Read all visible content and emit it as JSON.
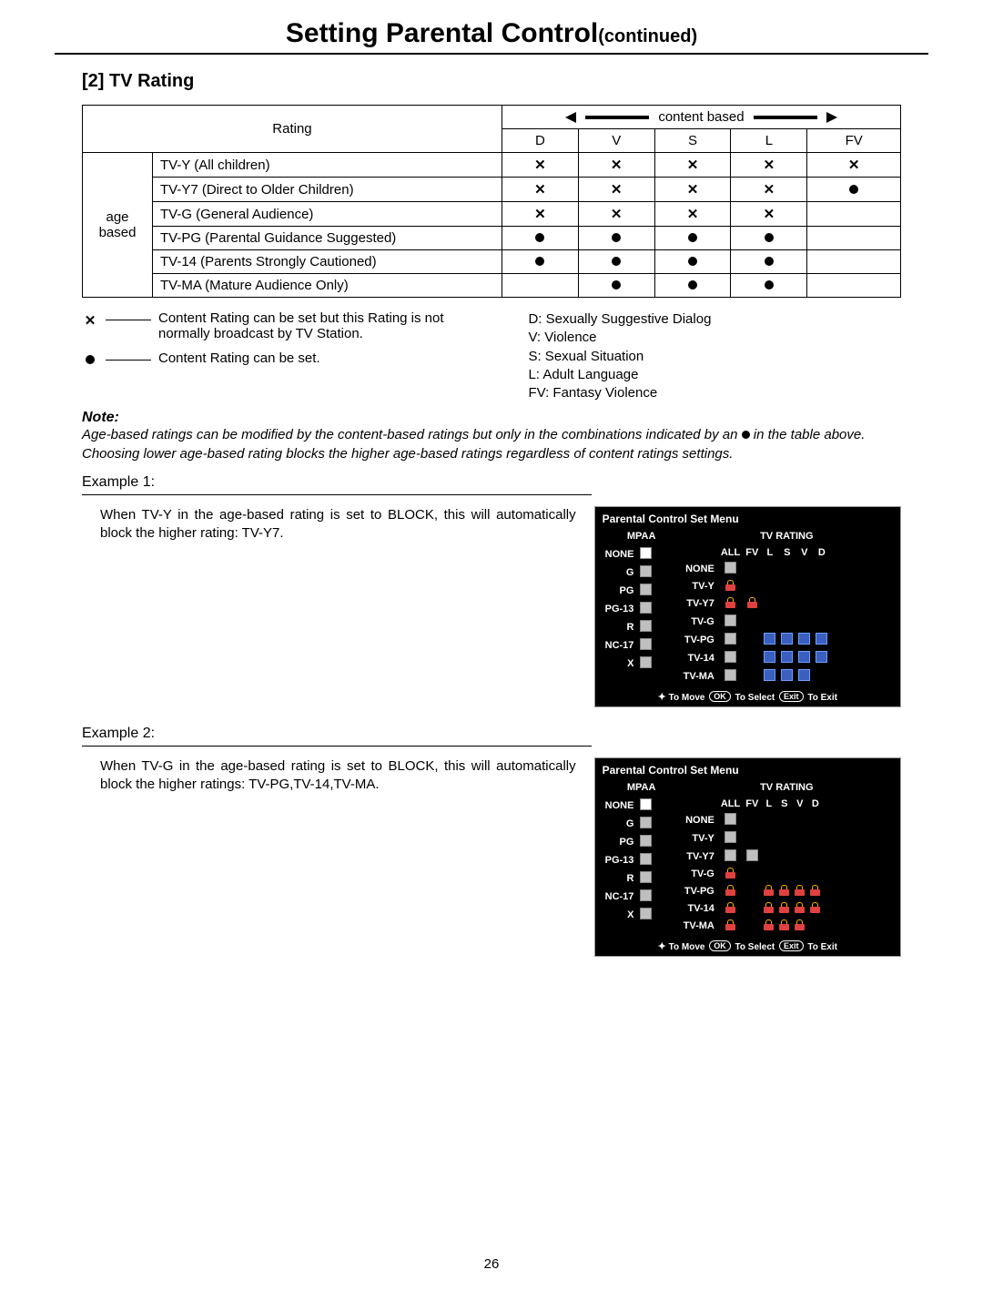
{
  "page_number": "26",
  "title_main": "Setting Parental Control",
  "title_cont": "(continued)",
  "section_heading": "[2] TV Rating",
  "rating_table": {
    "corner_label": "Rating",
    "content_based_label": "content based",
    "age_based_label": "age based",
    "content_cols": [
      "D",
      "V",
      "S",
      "L",
      "FV"
    ],
    "rows": [
      {
        "label": "TV-Y (All children)",
        "cells": [
          "x",
          "x",
          "x",
          "x",
          "x"
        ]
      },
      {
        "label": "TV-Y7 (Direct to Older Children)",
        "cells": [
          "x",
          "x",
          "x",
          "x",
          "dot"
        ]
      },
      {
        "label": "TV-G (General Audience)",
        "cells": [
          "x",
          "x",
          "x",
          "x",
          ""
        ]
      },
      {
        "label": "TV-PG (Parental Guidance Suggested)",
        "cells": [
          "dot",
          "dot",
          "dot",
          "dot",
          ""
        ]
      },
      {
        "label": "TV-14 (Parents Strongly Cautioned)",
        "cells": [
          "dot",
          "dot",
          "dot",
          "dot",
          ""
        ]
      },
      {
        "label": "TV-MA (Mature Audience Only)",
        "cells": [
          "",
          "dot",
          "dot",
          "dot",
          ""
        ]
      }
    ]
  },
  "legend": {
    "x_text": "Content Rating can be set but this Rating is not normally broadcast by TV Station.",
    "dot_text": "Content Rating can be set.",
    "defs": [
      "D: Sexually Suggestive Dialog",
      "V: Violence",
      "S: Sexual Situation",
      "L: Adult  Language",
      "FV: Fantasy Violence"
    ]
  },
  "note": {
    "heading": "Note:",
    "line1a": "Age-based ratings can be modified by the content-based ratings but only in the combinations indicated by an ",
    "line1b": " in the table above.",
    "line2": "Choosing lower age-based rating blocks the higher age-based ratings regardless of content ratings settings."
  },
  "example1": {
    "label": "Example 1:",
    "text": "When TV-Y in the age-based rating is set to BLOCK, this will automatically block the higher rating: TV-Y7."
  },
  "example2": {
    "label": "Example 2:",
    "text": "When TV-G in the age-based rating is set to BLOCK, this will automatically block the higher ratings: TV-PG,TV-14,TV-MA."
  },
  "menu_common": {
    "title": "Parental Control Set Menu",
    "mpaa_header": "MPAA",
    "tv_header": "TV RATING",
    "mpaa_rows": [
      "NONE",
      "G",
      "PG",
      "PG-13",
      "R",
      "NC-17",
      "X"
    ],
    "tv_cols": [
      "ALL",
      "FV",
      "L",
      "S",
      "V",
      "D"
    ],
    "tv_rows": [
      "NONE",
      "TV-Y",
      "TV-Y7",
      "TV-G",
      "TV-PG",
      "TV-14",
      "TV-MA"
    ],
    "foot_move": "To Move",
    "foot_ok": "OK",
    "foot_select": "To Select",
    "foot_exit": "Exit",
    "foot_toexit": "To Exit"
  },
  "menu1": {
    "mpaa_sel_index": 0,
    "tv_grid": [
      [
        "sq",
        "",
        "",
        "",
        "",
        ""
      ],
      [
        "lock",
        "",
        "",
        "",
        "",
        ""
      ],
      [
        "lock",
        "lock",
        "",
        "",
        "",
        ""
      ],
      [
        "sq",
        "",
        "",
        "",
        "",
        ""
      ],
      [
        "sq",
        "",
        "blue",
        "blue",
        "blue",
        "blue"
      ],
      [
        "sq",
        "",
        "blue",
        "blue",
        "blue",
        "blue"
      ],
      [
        "sq",
        "",
        "blue",
        "blue",
        "blue",
        ""
      ]
    ]
  },
  "menu2": {
    "mpaa_sel_index": 0,
    "tv_grid": [
      [
        "sq",
        "",
        "",
        "",
        "",
        ""
      ],
      [
        "sq",
        "",
        "",
        "",
        "",
        ""
      ],
      [
        "sq",
        "sq",
        "",
        "",
        "",
        ""
      ],
      [
        "lock",
        "",
        "",
        "",
        "",
        ""
      ],
      [
        "lock",
        "",
        "lock",
        "lock",
        "lock",
        "lock"
      ],
      [
        "lock",
        "",
        "lock",
        "lock",
        "lock",
        "lock"
      ],
      [
        "lock",
        "",
        "lock",
        "lock",
        "lock",
        ""
      ]
    ]
  }
}
